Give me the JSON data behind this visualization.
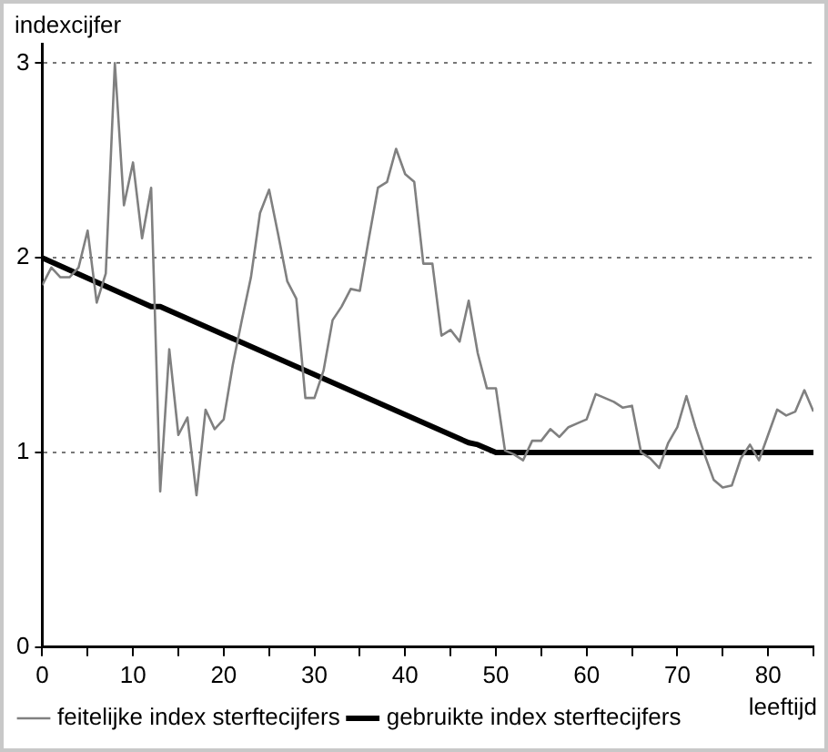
{
  "chart_data": {
    "type": "line",
    "xlabel": "leeftijd",
    "ylabel": "indexcijfer",
    "xlim": [
      0,
      85
    ],
    "xticks": [
      0,
      {
        "value": 5,
        "label": null
      },
      10,
      {
        "value": 15,
        "label": null
      },
      20,
      {
        "value": 25,
        "label": null
      },
      30,
      {
        "value": 35,
        "label": null
      },
      40,
      {
        "value": 45,
        "label": null
      },
      50,
      {
        "value": 55,
        "label": null
      },
      60,
      {
        "value": 65,
        "label": null
      },
      70,
      {
        "value": 75,
        "label": null
      },
      80,
      {
        "value": 85,
        "label": null
      }
    ],
    "ylim": [
      0,
      3.1
    ],
    "yticks": [
      0,
      1,
      2,
      3
    ],
    "grid": "y",
    "legend": "bottom left",
    "marker": "none",
    "line_style": "solid",
    "series": [
      {
        "name": "feitelijke index sterftecijfers",
        "color": "#808080",
        "x": [
          0,
          1,
          2,
          3,
          4,
          5,
          6,
          7,
          8,
          9,
          10,
          11,
          12,
          13,
          14,
          15,
          16,
          17,
          18,
          19,
          20,
          21,
          22,
          23,
          24,
          25,
          26,
          27,
          28,
          29,
          30,
          31,
          32,
          33,
          34,
          35,
          36,
          37,
          38,
          39,
          40,
          41,
          42,
          43,
          44,
          45,
          46,
          47,
          48,
          49,
          50,
          51,
          52,
          53,
          54,
          55,
          56,
          57,
          58,
          59,
          60,
          61,
          62,
          63,
          64,
          65,
          66,
          67,
          68,
          69,
          70,
          71,
          72,
          73,
          74,
          75,
          76,
          77,
          78,
          79,
          80,
          81,
          82,
          83,
          84,
          85
        ],
        "values": [
          1.86,
          1.95,
          1.9,
          1.9,
          1.95,
          2.14,
          1.77,
          1.92,
          3.0,
          2.27,
          2.49,
          2.1,
          2.36,
          0.8,
          1.53,
          1.09,
          1.18,
          0.78,
          1.22,
          1.12,
          1.17,
          1.45,
          1.68,
          1.9,
          2.23,
          2.35,
          2.12,
          1.88,
          1.79,
          1.28,
          1.28,
          1.42,
          1.68,
          1.75,
          1.84,
          1.83,
          2.1,
          2.36,
          2.39,
          2.56,
          2.43,
          2.39,
          1.97,
          1.97,
          1.6,
          1.63,
          1.57,
          1.78,
          1.51,
          1.33,
          1.33,
          1.01,
          0.99,
          0.96,
          1.06,
          1.06,
          1.12,
          1.08,
          1.13,
          1.15,
          1.17,
          1.3,
          1.28,
          1.26,
          1.23,
          1.24,
          1.0,
          0.97,
          0.92,
          1.05,
          1.13,
          1.29,
          1.13,
          0.99,
          0.86,
          0.82,
          0.83,
          0.97,
          1.04,
          0.96,
          1.09,
          1.22,
          1.19,
          1.21,
          1.32,
          1.21
        ]
      },
      {
        "name": "gebruikte index sterftecijfers",
        "color": "#000000",
        "x": [
          0,
          12,
          13,
          47,
          48,
          50,
          85
        ],
        "values": [
          2.0,
          1.75,
          1.75,
          1.05,
          1.04,
          1.0,
          1.0
        ]
      }
    ]
  }
}
